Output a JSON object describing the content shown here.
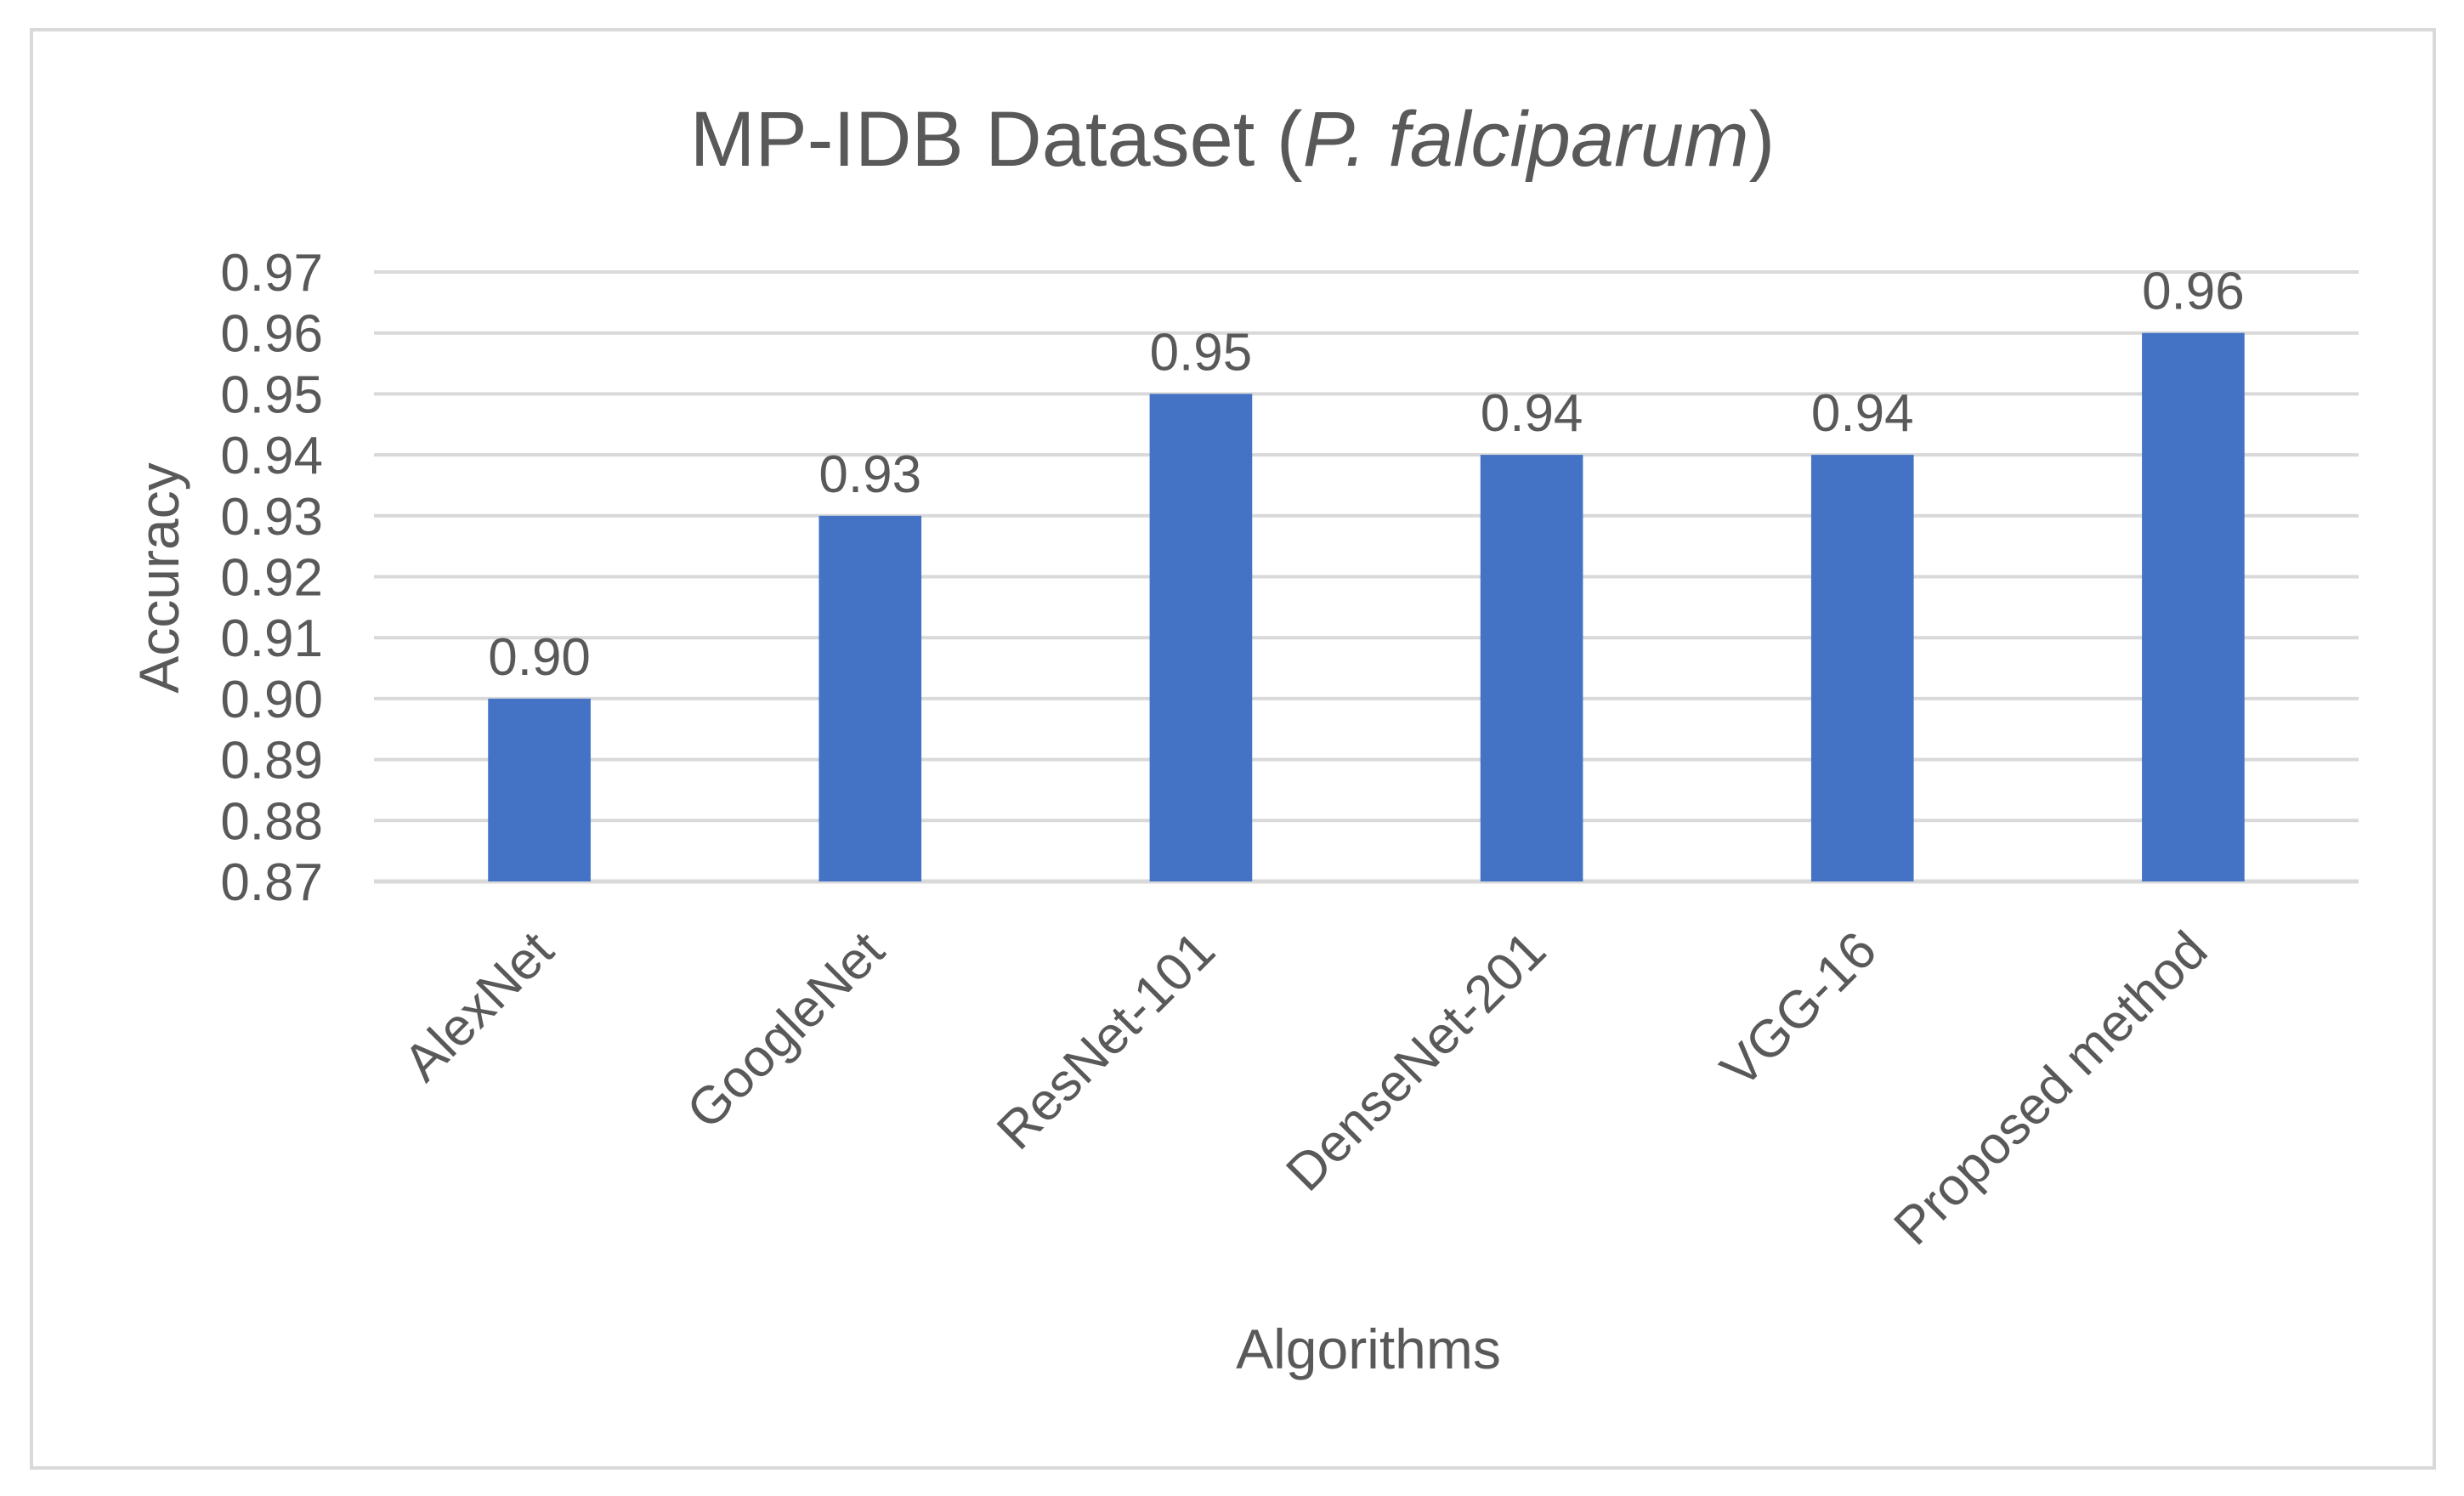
{
  "chart_data": {
    "type": "bar",
    "title": "MP-IDB Dataset (P. falciparum)",
    "title_parts": [
      {
        "text": "MP-IDB Dataset (",
        "italic": false
      },
      {
        "text": "P. falciparum",
        "italic": true
      },
      {
        "text": ")",
        "italic": false
      }
    ],
    "xlabel": "Algorithms",
    "ylabel": "Accuracy",
    "categories": [
      "AlexNet",
      "GoogleNet",
      "ResNet-101",
      "DenseNet-201",
      "VGG-16",
      "Proposed method"
    ],
    "values": [
      0.9,
      0.93,
      0.95,
      0.94,
      0.94,
      0.96
    ],
    "data_labels": [
      "0.90",
      "0.93",
      "0.95",
      "0.94",
      "0.94",
      "0.96"
    ],
    "ylim": [
      0.87,
      0.97
    ],
    "yticks": [
      "0.87",
      "0.88",
      "0.89",
      "0.90",
      "0.91",
      "0.92",
      "0.93",
      "0.94",
      "0.95",
      "0.96",
      "0.97"
    ],
    "grid": true,
    "legend": "none",
    "bar_color": "#4472C4",
    "grid_color": "#D9D9D9",
    "text_color": "#595959",
    "border_color": "#D9D9D9"
  }
}
